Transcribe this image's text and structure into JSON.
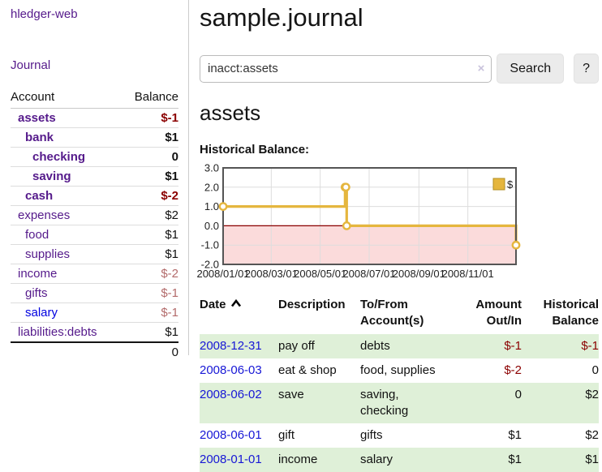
{
  "sidebar": {
    "brand": "hledger-web",
    "journal_link": "Journal",
    "accounts_table": {
      "headers": {
        "account": "Account",
        "balance": "Balance"
      },
      "rows": [
        {
          "name": "assets",
          "level": 1,
          "bold": true,
          "balance": "$-1"
        },
        {
          "name": "bank",
          "level": 2,
          "bold": true,
          "balance": "$1"
        },
        {
          "name": "checking",
          "level": 3,
          "bold": true,
          "balance": "0"
        },
        {
          "name": "saving",
          "level": 3,
          "bold": true,
          "balance": "$1"
        },
        {
          "name": "cash",
          "level": 2,
          "bold": true,
          "balance": "$-2"
        },
        {
          "name": "expenses",
          "level": 1,
          "bold": false,
          "balance": "$2"
        },
        {
          "name": "food",
          "level": 2,
          "bold": false,
          "balance": "$1"
        },
        {
          "name": "supplies",
          "level": 2,
          "bold": false,
          "balance": "$1"
        },
        {
          "name": "income",
          "level": 1,
          "bold": false,
          "balance": "$-2"
        },
        {
          "name": "gifts",
          "level": 2,
          "bold": false,
          "balance": "$-1"
        },
        {
          "name": "salary",
          "level": 2,
          "bold": false,
          "balance": "$-1",
          "link_color": "blue"
        },
        {
          "name": "liabilities:debts",
          "level": 1,
          "bold": false,
          "balance": "$1"
        }
      ],
      "total": "0"
    }
  },
  "main": {
    "title": "sample.journal",
    "search": {
      "value": "inacct:assets",
      "clear_label": "×",
      "button": "Search",
      "help_button": "?"
    },
    "account_heading": "assets",
    "chart_heading": "Historical Balance:",
    "register_table": {
      "columns": [
        {
          "id": "date",
          "line1": "Date",
          "line2": "",
          "align": "left",
          "sorted": "asc"
        },
        {
          "id": "description",
          "line1": "Description",
          "line2": "",
          "align": "left"
        },
        {
          "id": "accounts",
          "line1": "To/From",
          "line2": "Account(s)",
          "align": "left"
        },
        {
          "id": "amount",
          "line1": "Amount",
          "line2": "Out/In",
          "align": "right"
        },
        {
          "id": "balance",
          "line1": "Historical",
          "line2": "Balance",
          "align": "right"
        }
      ],
      "rows": [
        {
          "date": "2008-12-31",
          "description": "pay off",
          "accounts": "debts",
          "amount": "$-1",
          "balance": "$-1"
        },
        {
          "date": "2008-06-03",
          "description": "eat & shop",
          "accounts": "food, supplies",
          "amount": "$-2",
          "balance": "0"
        },
        {
          "date": "2008-06-02",
          "description": "save",
          "accounts": "saving,\nchecking",
          "amount": "0",
          "balance": "$2"
        },
        {
          "date": "2008-06-01",
          "description": "gift",
          "accounts": "gifts",
          "amount": "$1",
          "balance": "$2"
        },
        {
          "date": "2008-01-01",
          "description": "income",
          "accounts": "salary",
          "amount": "$1",
          "balance": "$1"
        }
      ]
    }
  },
  "chart_data": {
    "type": "line",
    "title": "Historical Balance",
    "legend": "$",
    "step": true,
    "ylim": [
      -2,
      3
    ],
    "yticks": [
      3.0,
      2.0,
      1.0,
      0.0,
      -1.0,
      -2.0
    ],
    "xtick_labels": [
      "2008/01/01",
      "2008/03/01",
      "2008/05/01",
      "2008/07/01",
      "2008/09/01",
      "2008/11/01"
    ],
    "xtick_days": [
      0,
      60,
      121,
      182,
      244,
      305
    ],
    "x_range_days": 365,
    "points": [
      {
        "date": "2008-01-01",
        "day": 0,
        "value": 1
      },
      {
        "date": "2008-06-01",
        "day": 152,
        "value": 2
      },
      {
        "date": "2008-06-02",
        "day": 153,
        "value": 2
      },
      {
        "date": "2008-06-03",
        "day": 154,
        "value": 0
      },
      {
        "date": "2008-12-31",
        "day": 365,
        "value": -1
      }
    ],
    "grid": true,
    "legend_position": "top-right",
    "colors": {
      "line": "#e5b63e",
      "marker_fill": "#ffffff",
      "area_negative": "#fbdbdb",
      "zero_line": "#8b0000",
      "grid": "#dddddd",
      "border": "#555555"
    }
  },
  "colors": {
    "link_purple": "#551a8b",
    "link_blue": "#0000e0",
    "negative_strong": "#8b0000",
    "negative_muted": "#b36b6b",
    "row_stripe_green": "#dff0d8"
  }
}
